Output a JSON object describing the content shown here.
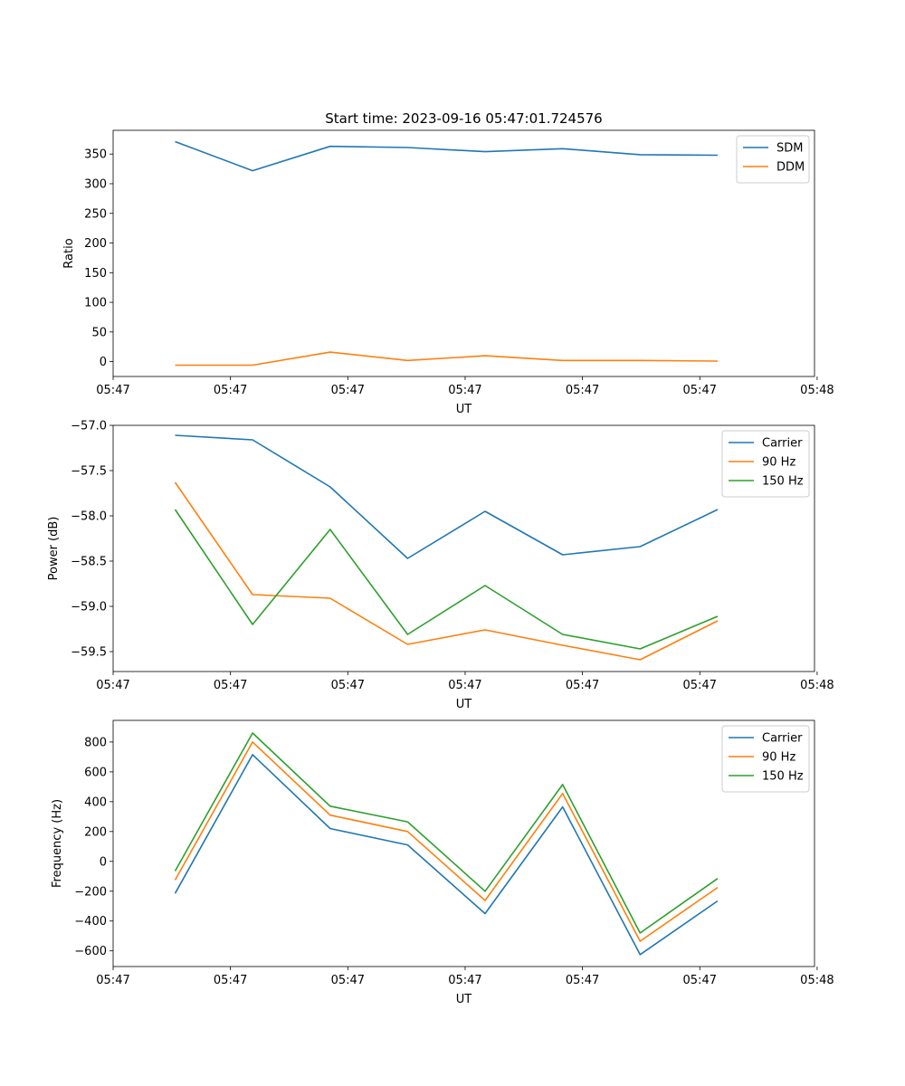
{
  "figure_title": "Start time: 2023-09-16 05:47:01.724576",
  "colors": {
    "blue": "#1f77b4",
    "orange": "#ff7f0e",
    "green": "#2ca02c",
    "axes": "#000000",
    "legend_border": "#cccccc"
  },
  "chart_data": [
    {
      "type": "line",
      "id": "ratio",
      "title": "Start time: 2023-09-16 05:47:01.724576",
      "xlabel": "UT",
      "ylabel": "Ratio",
      "x": [
        1,
        2,
        3,
        4,
        5,
        6,
        7,
        8
      ],
      "xlim": [
        0.2,
        9.25
      ],
      "ylim": [
        -25,
        390
      ],
      "xticks": [
        0.2,
        1.714,
        3.228,
        4.742,
        6.256,
        7.77,
        9.284
      ],
      "xtick_labels": [
        "05:47",
        "05:47",
        "05:47",
        "05:47",
        "05:47",
        "05:47",
        "05:48"
      ],
      "yticks": [
        0,
        50,
        100,
        150,
        200,
        250,
        300,
        350
      ],
      "ytick_labels": [
        "0",
        "50",
        "100",
        "150",
        "200",
        "250",
        "300",
        "350"
      ],
      "legend_position": "top-right",
      "series": [
        {
          "name": "SDM",
          "color": "#1f77b4",
          "values": [
            371,
            322,
            363,
            361,
            354,
            359,
            349,
            348
          ]
        },
        {
          "name": "DDM",
          "color": "#ff7f0e",
          "values": [
            -6,
            -6,
            16,
            2,
            10,
            2,
            2,
            1
          ]
        }
      ]
    },
    {
      "type": "line",
      "id": "power",
      "xlabel": "UT",
      "ylabel": "Power (dB)",
      "x": [
        1,
        2,
        3,
        4,
        5,
        6,
        7,
        8
      ],
      "xlim": [
        0.2,
        9.25
      ],
      "ylim": [
        -59.72,
        -57.0
      ],
      "xticks": [
        0.2,
        1.714,
        3.228,
        4.742,
        6.256,
        7.77,
        9.284
      ],
      "xtick_labels": [
        "05:47",
        "05:47",
        "05:47",
        "05:47",
        "05:47",
        "05:47",
        "05:48"
      ],
      "yticks": [
        -59.5,
        -59.0,
        -58.5,
        -58.0,
        -57.5,
        -57.0
      ],
      "ytick_labels": [
        "−59.5",
        "−59.0",
        "−58.5",
        "−58.0",
        "−57.5",
        "−57.0"
      ],
      "legend_position": "top-right",
      "series": [
        {
          "name": "Carrier",
          "color": "#1f77b4",
          "values": [
            -57.11,
            -57.16,
            -57.68,
            -58.47,
            -57.95,
            -58.43,
            -58.34,
            -57.93
          ]
        },
        {
          "name": "90 Hz",
          "color": "#ff7f0e",
          "values": [
            -57.63,
            -58.87,
            -58.91,
            -59.42,
            -59.26,
            -59.43,
            -59.59,
            -59.16
          ]
        },
        {
          "name": "150 Hz",
          "color": "#2ca02c",
          "values": [
            -57.93,
            -59.2,
            -58.15,
            -59.31,
            -58.77,
            -59.31,
            -59.47,
            -59.11
          ]
        }
      ]
    },
    {
      "type": "line",
      "id": "frequency",
      "xlabel": "UT",
      "ylabel": "Frequency (Hz)",
      "x": [
        1,
        2,
        3,
        4,
        5,
        6,
        7,
        8
      ],
      "xlim": [
        0.2,
        9.25
      ],
      "ylim": [
        -705,
        945
      ],
      "xticks": [
        0.2,
        1.714,
        3.228,
        4.742,
        6.256,
        7.77,
        9.284
      ],
      "xtick_labels": [
        "05:47",
        "05:47",
        "05:47",
        "05:47",
        "05:47",
        "05:47",
        "05:48"
      ],
      "yticks": [
        -600,
        -400,
        -200,
        0,
        200,
        400,
        600,
        800
      ],
      "ytick_labels": [
        "−600",
        "−400",
        "−200",
        "0",
        "200",
        "400",
        "600",
        "800"
      ],
      "legend_position": "top-right",
      "series": [
        {
          "name": "Carrier",
          "color": "#1f77b4",
          "values": [
            -215,
            715,
            220,
            110,
            -350,
            365,
            -625,
            -265
          ]
        },
        {
          "name": "90 Hz",
          "color": "#ff7f0e",
          "values": [
            -125,
            800,
            310,
            200,
            -262,
            455,
            -535,
            -175
          ]
        },
        {
          "name": "150 Hz",
          "color": "#2ca02c",
          "values": [
            -65,
            860,
            370,
            265,
            -200,
            515,
            -480,
            -115
          ]
        }
      ]
    }
  ]
}
